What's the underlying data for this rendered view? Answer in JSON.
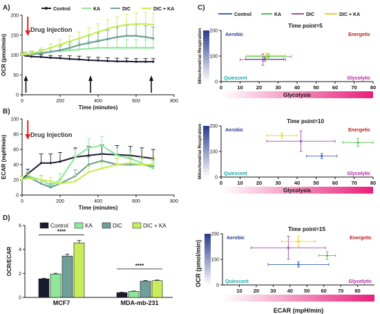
{
  "colors": {
    "control": "#1b1b2f",
    "ka": "#8fe89a",
    "dic": "#6f9f98",
    "dic_ka": "#c8ec5c",
    "legend_control": "#3a62b6",
    "legend_ka": "#4cc24c",
    "legend_dic": "#a24aa6",
    "legend_dic_ka": "#e8cf2a",
    "aerobic": "#2a3a8a",
    "energetic": "#c01818",
    "quiescent": "#1aa8b0",
    "glycolytic": "#b020a0",
    "arrow_red": "#e02020"
  },
  "panels": {
    "A": "A)",
    "B": "B)",
    "C": "C)",
    "D": "D)"
  },
  "legend": {
    "control": "Control",
    "ka": "KA",
    "dic": "DIC",
    "dic_ka": "DIC + KA"
  },
  "annotations": {
    "drug_injection": "Drug Injection"
  },
  "quadrants": {
    "aerobic": "Aerobic",
    "energetic": "Energetic",
    "quiescent": "Quiescent",
    "glycolytic": "Glycolytic",
    "side_bar": "Mitochondrial Respiration",
    "bottom_bar": "Glycolysis"
  },
  "chart_data": [
    {
      "id": "A",
      "type": "line",
      "ylabel": "OCR (pmol/min)",
      "xlabel": "Time (minutes)",
      "xlim": [
        0,
        800
      ],
      "ylim": [
        0,
        200
      ],
      "xticks": [
        0,
        200,
        400,
        600,
        800
      ],
      "yticks": [
        0,
        50,
        100,
        150,
        200
      ],
      "injection_time": 30,
      "injection_arrows": [
        20,
        360,
        680
      ],
      "series": [
        {
          "name": "Control",
          "key": "control",
          "x": [
            0,
            20,
            50,
            100,
            150,
            200,
            250,
            300,
            350,
            400,
            450,
            500,
            550,
            600,
            650,
            690
          ],
          "y": [
            100,
            98,
            96,
            95,
            93,
            92,
            90,
            89,
            87,
            86,
            85,
            84,
            84,
            83,
            83,
            83
          ],
          "err": [
            5,
            5,
            5,
            6,
            6,
            6,
            8,
            8,
            8,
            8,
            8,
            8,
            8,
            8,
            8,
            8
          ]
        },
        {
          "name": "KA",
          "key": "ka",
          "x": [
            0,
            20,
            50,
            100,
            150,
            200,
            250,
            300,
            350,
            400,
            450,
            500,
            550,
            600,
            650,
            690
          ],
          "y": [
            100,
            102,
            104,
            106,
            108,
            110,
            112,
            114,
            116,
            118,
            118,
            118,
            118,
            118,
            118,
            118
          ],
          "err": [
            6,
            6,
            6,
            8,
            10,
            12,
            14,
            16,
            18,
            20,
            20,
            20,
            20,
            20,
            20,
            20
          ]
        },
        {
          "name": "DIC",
          "key": "dic",
          "x": [
            0,
            20,
            50,
            100,
            150,
            200,
            250,
            300,
            350,
            400,
            450,
            500,
            550,
            600,
            650,
            690
          ],
          "y": [
            100,
            101,
            102,
            104,
            108,
            112,
            118,
            125,
            130,
            135,
            140,
            145,
            148,
            148,
            145,
            142
          ],
          "err": [
            6,
            6,
            6,
            8,
            10,
            12,
            14,
            16,
            18,
            20,
            22,
            24,
            26,
            28,
            28,
            28
          ]
        },
        {
          "name": "DIC + KA",
          "key": "dic_ka",
          "x": [
            0,
            20,
            50,
            100,
            150,
            200,
            250,
            300,
            350,
            400,
            450,
            500,
            550,
            600,
            650,
            690
          ],
          "y": [
            100,
            102,
            104,
            110,
            118,
            126,
            134,
            142,
            150,
            158,
            166,
            172,
            176,
            178,
            178,
            176
          ],
          "err": [
            6,
            6,
            6,
            8,
            10,
            12,
            14,
            16,
            18,
            20,
            22,
            24,
            26,
            28,
            28,
            28
          ]
        }
      ]
    },
    {
      "id": "B",
      "type": "line",
      "ylabel": "ECAR (mpH/min)",
      "xlabel": "Time (minutes)",
      "xlim": [
        0,
        800
      ],
      "ylim": [
        0,
        100
      ],
      "xticks": [
        0,
        200,
        400,
        600,
        800
      ],
      "yticks": [
        0,
        20,
        40,
        60,
        80,
        100
      ],
      "injection_time": 30,
      "series": [
        {
          "name": "Control",
          "key": "control",
          "x": [
            0,
            30,
            100,
            150,
            200,
            280,
            350,
            420,
            500,
            570,
            630,
            690
          ],
          "y": [
            20,
            28,
            42,
            42,
            44,
            50,
            52,
            54,
            53,
            52,
            50,
            48
          ],
          "err": [
            5,
            6,
            12,
            12,
            12,
            12,
            12,
            12,
            12,
            12,
            12,
            12
          ]
        },
        {
          "name": "KA",
          "key": "ka",
          "x": [
            0,
            30,
            100,
            150,
            200,
            280,
            350,
            420,
            500,
            570,
            630,
            690
          ],
          "y": [
            20,
            25,
            20,
            12,
            20,
            50,
            62,
            65,
            52,
            48,
            42,
            35
          ],
          "err": [
            5,
            6,
            6,
            6,
            8,
            10,
            12,
            12,
            10,
            10,
            8,
            8
          ]
        },
        {
          "name": "DIC",
          "key": "dic",
          "x": [
            0,
            30,
            100,
            150,
            200,
            280,
            350,
            420,
            500,
            570,
            630,
            690
          ],
          "y": [
            20,
            24,
            15,
            10,
            15,
            25,
            40,
            45,
            40,
            40,
            40,
            38
          ],
          "err": [
            4,
            5,
            5,
            5,
            6,
            8,
            10,
            10,
            8,
            8,
            8,
            8
          ]
        },
        {
          "name": "DIC + KA",
          "key": "dic_ka",
          "x": [
            0,
            30,
            100,
            150,
            200,
            280,
            350,
            420,
            500,
            570,
            630,
            690
          ],
          "y": [
            20,
            22,
            20,
            18,
            15,
            18,
            30,
            35,
            40,
            42,
            40,
            40
          ],
          "err": [
            4,
            5,
            5,
            5,
            6,
            8,
            8,
            8,
            8,
            8,
            8,
            8
          ]
        }
      ]
    },
    {
      "id": "C1",
      "type": "scatter",
      "title": "Time point=5",
      "xlabel": "Glycolysis",
      "xlim": [
        0,
        80
      ],
      "ylim": [
        0,
        200
      ],
      "xticks": [
        0,
        10,
        20,
        30,
        40,
        50,
        60,
        70,
        80
      ],
      "yticks": [
        0,
        100,
        200
      ],
      "points": [
        {
          "key": "control",
          "x": 23,
          "y": 88,
          "xerr": 10,
          "yerr": 8
        },
        {
          "key": "ka",
          "x": 25,
          "y": 98,
          "xerr": 12,
          "yerr": 10
        },
        {
          "key": "dic",
          "x": 22,
          "y": 86,
          "xerr": 12,
          "yerr": 22
        },
        {
          "key": "dic_ka",
          "x": 24,
          "y": 102,
          "xerr": 10,
          "yerr": 10
        }
      ]
    },
    {
      "id": "C2",
      "type": "scatter",
      "title": "Time point=10",
      "xlabel": "Glycolysis",
      "xlim": [
        0,
        80
      ],
      "ylim": [
        0,
        200
      ],
      "xticks": [
        0,
        10,
        20,
        30,
        40,
        50,
        60,
        70,
        80
      ],
      "yticks": [
        0,
        100,
        200
      ],
      "points": [
        {
          "key": "control",
          "x": 53,
          "y": 82,
          "xerr": 8,
          "yerr": 10
        },
        {
          "key": "ka",
          "x": 72,
          "y": 135,
          "xerr": 8,
          "yerr": 15
        },
        {
          "key": "dic",
          "x": 42,
          "y": 140,
          "xerr": 18,
          "yerr": 40
        },
        {
          "key": "dic_ka",
          "x": 32,
          "y": 162,
          "xerr": 8,
          "yerr": 10
        }
      ]
    },
    {
      "id": "C3",
      "type": "scatter",
      "title": "Time point=15",
      "xlabel": "ECAR (mpH/min)",
      "ylabel": "OCR (pmol/min)",
      "xlim": [
        0,
        90
      ],
      "ylim": [
        0,
        200
      ],
      "xticks": [
        10,
        20,
        30,
        40,
        50,
        60,
        70,
        80
      ],
      "yticks": [
        0,
        100,
        200
      ],
      "points": [
        {
          "key": "control",
          "x": 45,
          "y": 80,
          "xerr": 18,
          "yerr": 10
        },
        {
          "key": "ka",
          "x": 62,
          "y": 115,
          "xerr": 5,
          "yerr": 15
        },
        {
          "key": "dic",
          "x": 39,
          "y": 145,
          "xerr": 22,
          "yerr": 45
        },
        {
          "key": "dic_ka",
          "x": 45,
          "y": 170,
          "xerr": 10,
          "yerr": 20
        }
      ]
    },
    {
      "id": "D",
      "type": "bar",
      "ylabel": "OCR/ECAR",
      "categories": [
        "MCF7",
        "MDA-mb-231"
      ],
      "ylim": [
        0,
        6
      ],
      "yticks": [
        0,
        2,
        4,
        6
      ],
      "significance": [
        "****",
        "****"
      ],
      "series": [
        {
          "name": "Control",
          "key": "control",
          "values": [
            1.55,
            0.4
          ],
          "err": [
            0.05,
            0.03
          ]
        },
        {
          "name": "KA",
          "key": "ka",
          "values": [
            1.95,
            0.5
          ],
          "err": [
            0.06,
            0.03
          ]
        },
        {
          "name": "DIC",
          "key": "dic",
          "values": [
            3.45,
            1.35
          ],
          "err": [
            0.15,
            0.06
          ]
        },
        {
          "name": "DIC + KA",
          "key": "dic_ka",
          "values": [
            4.55,
            1.4
          ],
          "err": [
            0.2,
            0.05
          ]
        }
      ]
    }
  ]
}
